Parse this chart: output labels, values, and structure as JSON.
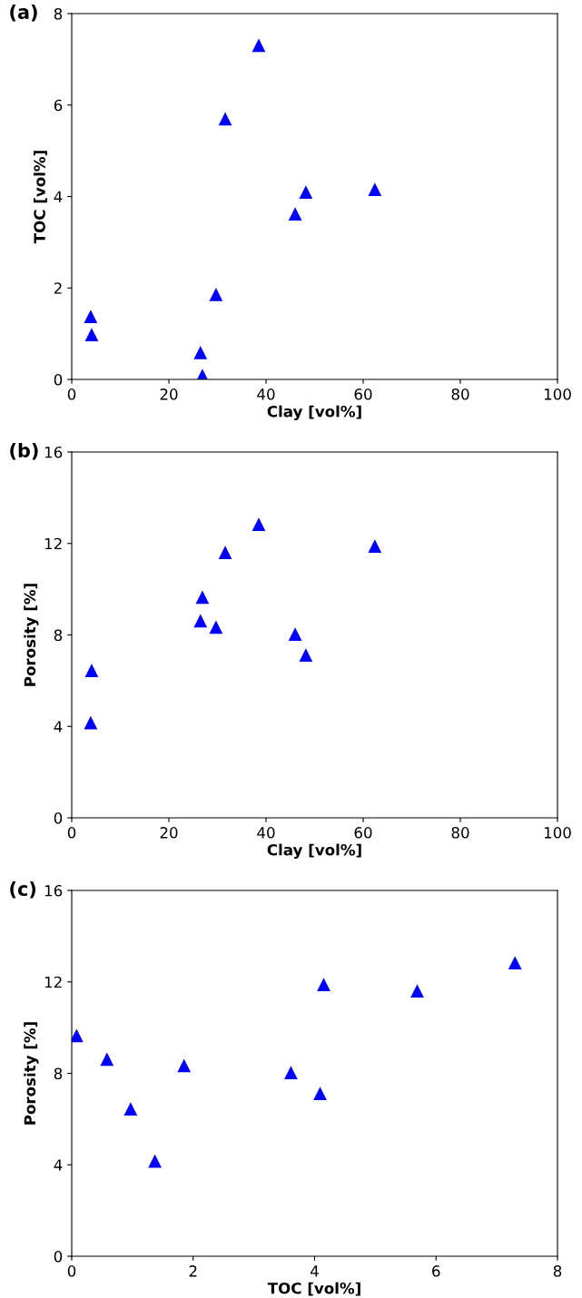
{
  "chart_data": [
    {
      "type": "scatter",
      "title": "(a)",
      "xlabel": "Clay [vol%]",
      "ylabel": "TOC [vol%]",
      "xlim": [
        0,
        100
      ],
      "ylim": [
        0,
        8
      ],
      "xticks": [
        0,
        20,
        40,
        60,
        80,
        100
      ],
      "yticks": [
        0,
        2,
        4,
        6,
        8
      ],
      "marker": "triangle",
      "grid": false,
      "legend": false,
      "series": [
        {
          "color": "#0000ff",
          "x": [
            3.9,
            4.1,
            26.5,
            26.9,
            29.7,
            31.6,
            38.5,
            46.0,
            48.2,
            62.4
          ],
          "values": [
            1.37,
            0.97,
            0.58,
            0.08,
            1.85,
            5.69,
            7.3,
            3.61,
            4.09,
            4.15
          ]
        }
      ]
    },
    {
      "type": "scatter",
      "title": "(b)",
      "xlabel": "Clay [vol%]",
      "ylabel": "Porosity [%]",
      "xlim": [
        0,
        100
      ],
      "ylim": [
        0,
        16
      ],
      "xticks": [
        0,
        20,
        40,
        60,
        80,
        100
      ],
      "yticks": [
        0,
        4,
        8,
        12,
        16
      ],
      "marker": "triangle",
      "grid": false,
      "legend": false,
      "series": [
        {
          "color": "#0000ff",
          "x": [
            3.9,
            4.1,
            26.5,
            26.9,
            29.7,
            31.6,
            38.5,
            46.0,
            48.2,
            62.4
          ],
          "values": [
            4.15,
            6.43,
            8.6,
            9.64,
            8.33,
            11.59,
            12.82,
            8.02,
            7.1,
            11.87
          ]
        }
      ]
    },
    {
      "type": "scatter",
      "title": "(c)",
      "xlabel": "TOC [vol%]",
      "ylabel": "Porosity [%]",
      "xlim": [
        0,
        8
      ],
      "ylim": [
        0,
        16
      ],
      "xticks": [
        0,
        2,
        4,
        6,
        8
      ],
      "yticks": [
        0,
        4,
        8,
        12,
        16
      ],
      "marker": "triangle",
      "grid": false,
      "legend": false,
      "series": [
        {
          "color": "#0000ff",
          "x": [
            1.37,
            0.97,
            0.58,
            0.08,
            1.85,
            5.69,
            7.3,
            3.61,
            4.09,
            4.15
          ],
          "values": [
            4.15,
            6.43,
            8.6,
            9.64,
            8.33,
            11.59,
            12.82,
            8.02,
            7.1,
            11.87
          ]
        }
      ]
    }
  ]
}
